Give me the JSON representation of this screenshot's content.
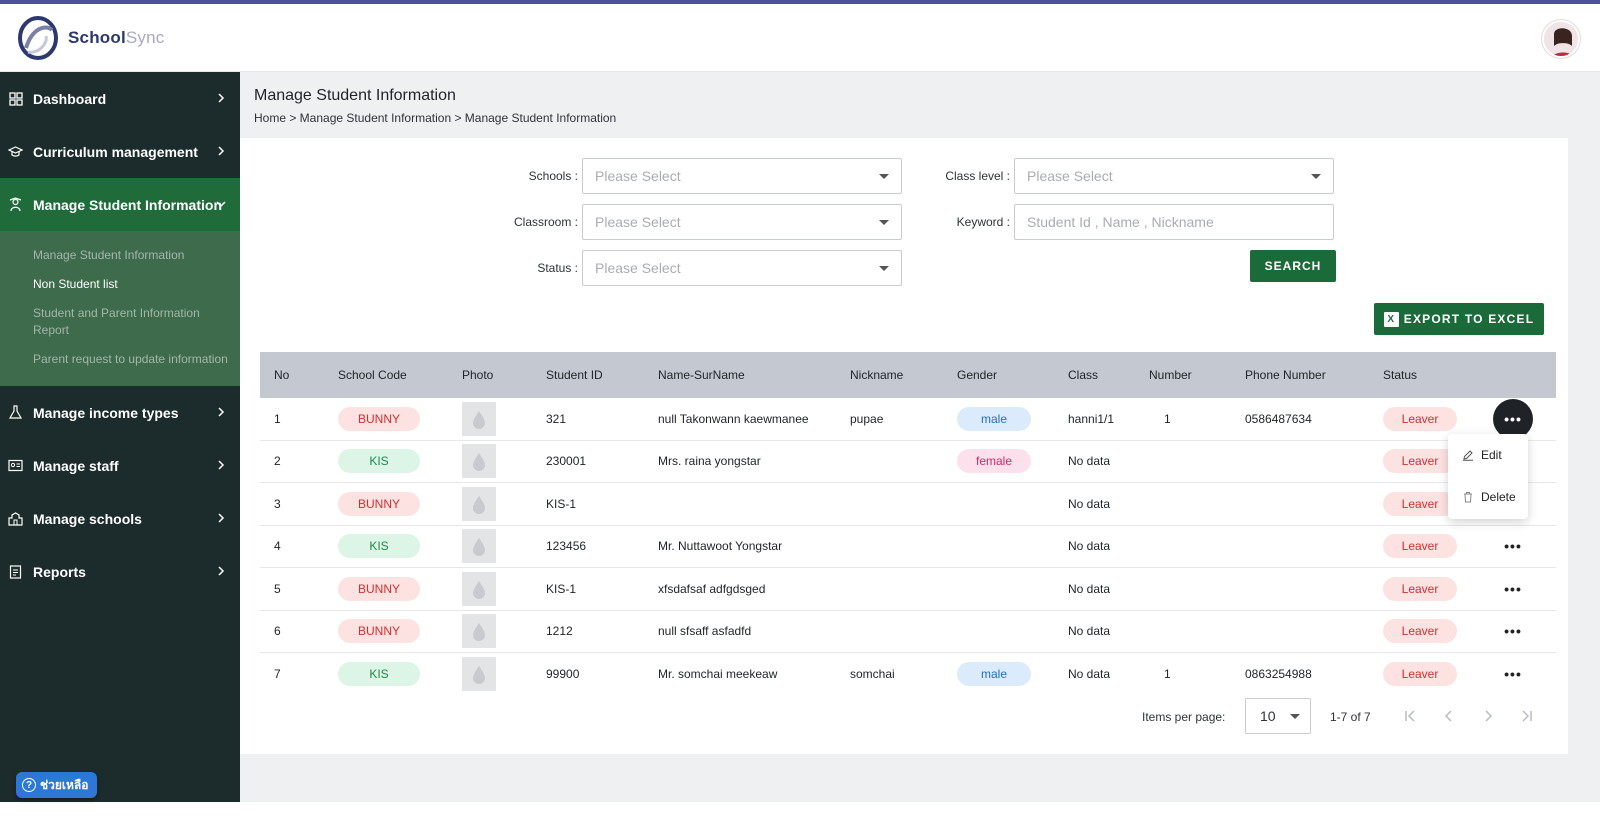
{
  "app": {
    "brand_primary": "School",
    "brand_secondary": "Sync"
  },
  "colors": {
    "sidebar": "#1c2b2b",
    "active_nav": "#1f6b3a",
    "subnav": "#3e6b4b",
    "primary_button": "#1b6b3a",
    "header_row": "#c3c8d1"
  },
  "sidebar": {
    "items": [
      {
        "label": "Dashboard",
        "icon": "grid-icon"
      },
      {
        "label": "Curriculum management",
        "icon": "graduation-cap-icon"
      },
      {
        "label": "Manage Student Information",
        "icon": "student-icon"
      },
      {
        "label": "Manage income types",
        "icon": "flask-icon"
      },
      {
        "label": "Manage staff",
        "icon": "id-card-icon"
      },
      {
        "label": "Manage schools",
        "icon": "school-icon"
      },
      {
        "label": "Reports",
        "icon": "clipboard-icon"
      }
    ],
    "subitems": [
      "Manage Student Information",
      "Non Student list",
      "Student and Parent Information Report",
      "Parent request to update information"
    ]
  },
  "help": {
    "label": "ช่วยเหลือ"
  },
  "page": {
    "title": "Manage Student Information",
    "breadcrumb": "Home > Manage Student Information > Manage Student Information"
  },
  "filters": {
    "schools_label": "Schools :",
    "schools_placeholder": "Please Select",
    "classroom_label": "Classroom :",
    "classroom_placeholder": "Please Select",
    "status_label": "Status :",
    "status_placeholder": "Please Select",
    "class_level_label": "Class level :",
    "class_level_placeholder": "Please Select",
    "keyword_label": "Keyword :",
    "keyword_placeholder": "Student Id , Name , Nickname",
    "search_button": "SEARCH",
    "export_button": "EXPORT TO EXCEL"
  },
  "table": {
    "headers": [
      "No",
      "School Code",
      "Photo",
      "Student ID",
      "Name-SurName",
      "Nickname",
      "Gender",
      "Class",
      "Number",
      "Phone Number",
      "Status"
    ],
    "rows": [
      {
        "no": "1",
        "school": "BUNNY",
        "student_id": "321",
        "name": "null Takonwann kaewmanee",
        "nickname": "pupae",
        "gender": "male",
        "class": "hanni1/1",
        "number": "1",
        "phone": "0586487634",
        "status": "Leaver"
      },
      {
        "no": "2",
        "school": "KIS",
        "student_id": "230001",
        "name": "Mrs. raina yongstar",
        "nickname": "",
        "gender": "female",
        "class": "No data",
        "number": "",
        "phone": "",
        "status": "Leaver"
      },
      {
        "no": "3",
        "school": "BUNNY",
        "student_id": "KIS-1",
        "name": "",
        "nickname": "",
        "gender": "",
        "class": "No data",
        "number": "",
        "phone": "",
        "status": "Leaver"
      },
      {
        "no": "4",
        "school": "KIS",
        "student_id": "123456",
        "name": "Mr. Nuttawoot Yongstar",
        "nickname": "",
        "gender": "",
        "class": "No data",
        "number": "",
        "phone": "",
        "status": "Leaver"
      },
      {
        "no": "5",
        "school": "BUNNY",
        "student_id": "KIS-1",
        "name": "xfsdafsaf adfgdsged",
        "nickname": "",
        "gender": "",
        "class": "No data",
        "number": "",
        "phone": "",
        "status": "Leaver"
      },
      {
        "no": "6",
        "school": "BUNNY",
        "student_id": "1212",
        "name": "null sfsaff asfadfd",
        "nickname": "",
        "gender": "",
        "class": "No data",
        "number": "",
        "phone": "",
        "status": "Leaver"
      },
      {
        "no": "7",
        "school": "KIS",
        "student_id": "99900",
        "name": "Mr. somchai meekeaw",
        "nickname": "somchai",
        "gender": "male",
        "class": "No data",
        "number": "1",
        "phone": "0863254988",
        "status": "Leaver"
      }
    ]
  },
  "row_menu": {
    "edit": "Edit",
    "delete": "Delete"
  },
  "pagination": {
    "items_per_page_label": "Items per page:",
    "page_size": "10",
    "range": "1-7 of 7"
  }
}
